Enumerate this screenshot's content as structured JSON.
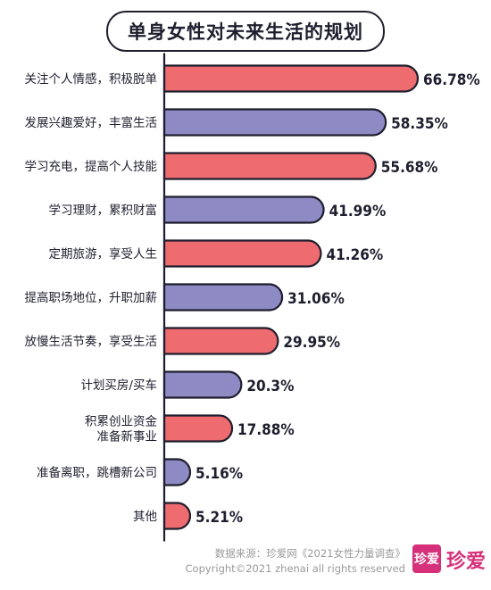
{
  "colors": {
    "red": "#ee6b70",
    "purple": "#8d8ac4",
    "outline": "#1e1e2e"
  },
  "chart_data": {
    "type": "bar",
    "orientation": "horizontal",
    "title": "单身女性对未来生活的规划",
    "categories": [
      [
        "关注个人情感，积极脱单"
      ],
      [
        "发展兴趣爱好，丰富生活"
      ],
      [
        "学习充电，提高个人技能"
      ],
      [
        "学习理财，累积财富"
      ],
      [
        "定期旅游，享受人生"
      ],
      [
        "提高职场地位，升职加薪"
      ],
      [
        "放慢生活节奏，享受生活"
      ],
      [
        "计划买房/买车"
      ],
      [
        "积累创业资金",
        "准备新事业"
      ],
      [
        "准备离职，跳槽新公司"
      ],
      [
        "其他"
      ]
    ],
    "values": [
      66.78,
      58.35,
      55.68,
      41.99,
      41.26,
      31.06,
      29.95,
      20.3,
      17.88,
      5.16,
      5.21
    ],
    "value_labels": [
      "66.78%",
      "58.35%",
      "55.68%",
      "41.99%",
      "41.26%",
      "31.06%",
      "29.95%",
      "20.3%",
      "17.88%",
      "5.16%",
      "5.21%"
    ],
    "bar_colors": [
      "red",
      "purple",
      "red",
      "purple",
      "red",
      "purple",
      "red",
      "purple",
      "red",
      "purple",
      "red"
    ],
    "xlim": [
      0,
      66.78
    ],
    "grid": false,
    "legend": "none"
  },
  "footer": {
    "source": "数据来源：珍爱网《2021女性力量调查》",
    "copyright": "Copyright©2021  zhenai  all rights reserved"
  },
  "logo": {
    "badge": "珍爱",
    "text": "珍爱"
  }
}
